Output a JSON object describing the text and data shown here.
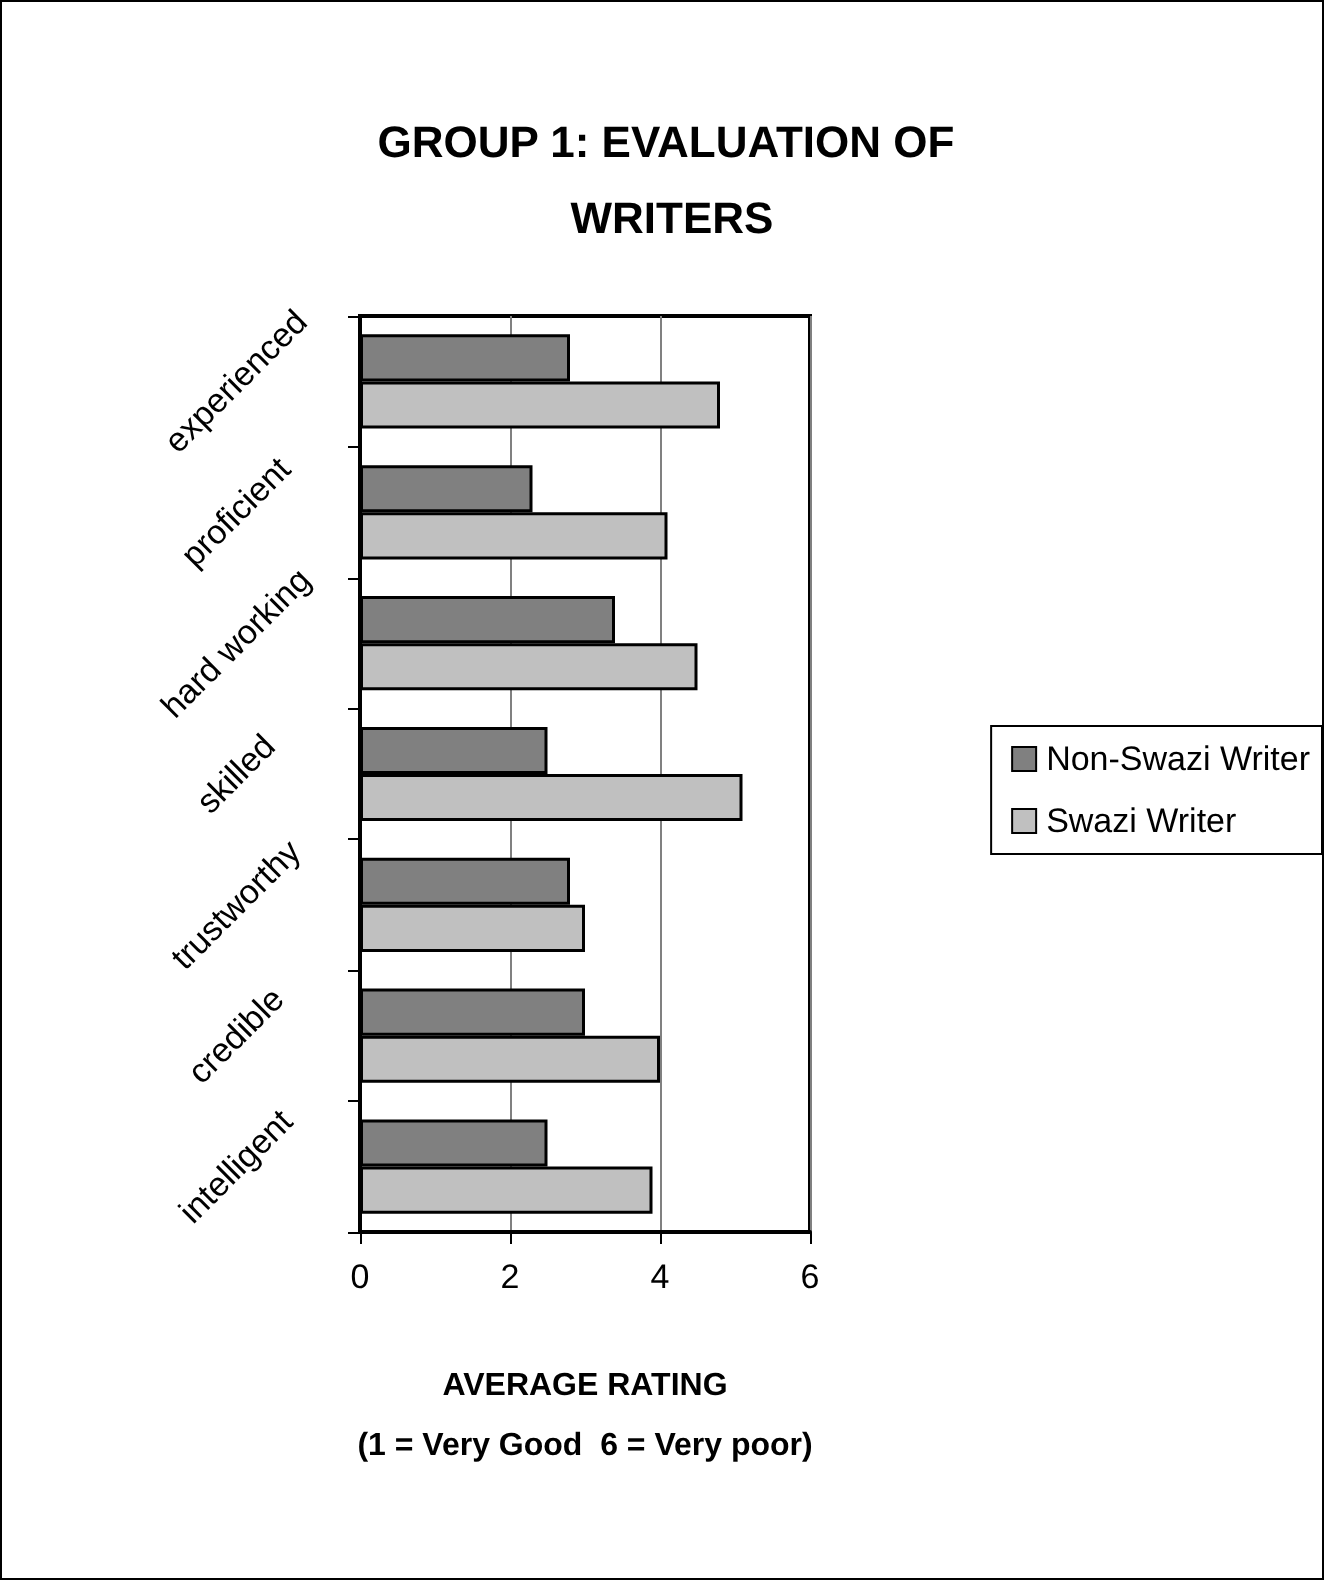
{
  "chart_data": {
    "type": "bar",
    "orientation": "horizontal",
    "title": "GROUP 1: EVALUATION OF WRITERS",
    "xlabel": "AVERAGE RATING\n(1 = Very Good  6 = Very poor)",
    "categories": [
      "experienced",
      "proficient",
      "hard working",
      "skilled",
      "trustworthy",
      "credible",
      "intelligent"
    ],
    "series": [
      {
        "name": "Non-Swazi Writer",
        "color": "#808080",
        "values": [
          2.8,
          2.3,
          3.4,
          2.5,
          2.8,
          3.0,
          2.5
        ]
      },
      {
        "name": "Swazi Writer",
        "color": "#c0c0c0",
        "values": [
          4.8,
          4.1,
          4.5,
          5.1,
          3.0,
          4.0,
          3.9
        ]
      }
    ],
    "xlim": [
      0,
      6
    ],
    "xticks": [
      0,
      2,
      4,
      6
    ],
    "grid": "x",
    "legend": "right"
  }
}
